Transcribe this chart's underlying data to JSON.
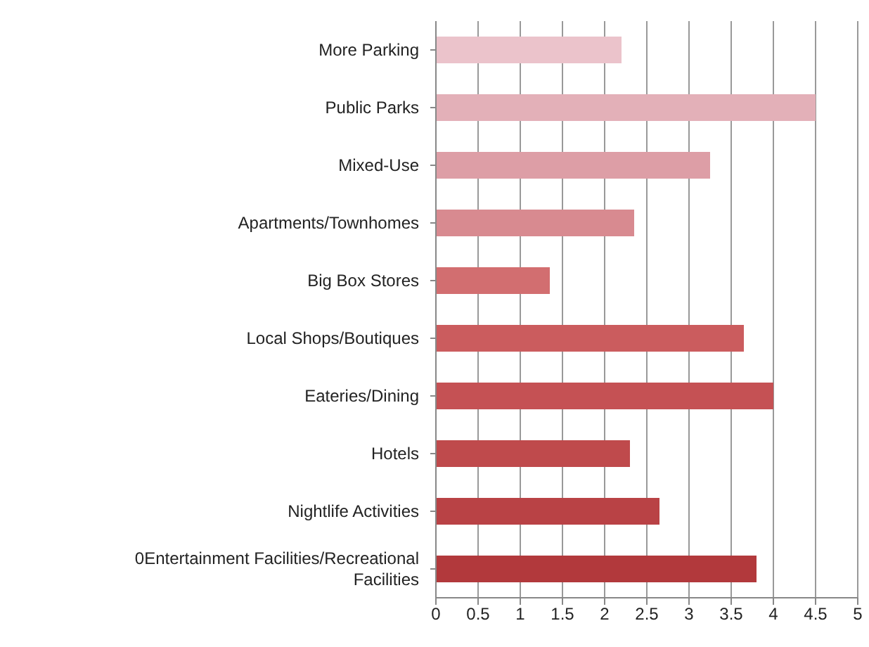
{
  "chart_data": {
    "type": "bar",
    "orientation": "horizontal",
    "categories": [
      "More Parking",
      "Public Parks",
      "Mixed-Use",
      "Apartments/Townhomes",
      "Big Box Stores",
      "Local Shops/Boutiques",
      "Eateries/Dining",
      "Hotels",
      "Nightlife Activities",
      "0Entertainment Facilities/Recreational Facilities"
    ],
    "values": [
      2.2,
      4.5,
      3.25,
      2.35,
      1.35,
      3.65,
      4,
      2.3,
      2.65,
      3.8
    ],
    "colors": [
      "#ebc3cb",
      "#e3b0b8",
      "#dd9ea6",
      "#d88a90",
      "#d26e70",
      "#cb5c5e",
      "#c55154",
      "#bf4a4c",
      "#b94245",
      "#b2393c"
    ],
    "xlim": [
      0,
      5
    ],
    "xticks": [
      0,
      0.5,
      1,
      1.5,
      2,
      2.5,
      3,
      3.5,
      4,
      4.5,
      5
    ],
    "grid": "x"
  }
}
